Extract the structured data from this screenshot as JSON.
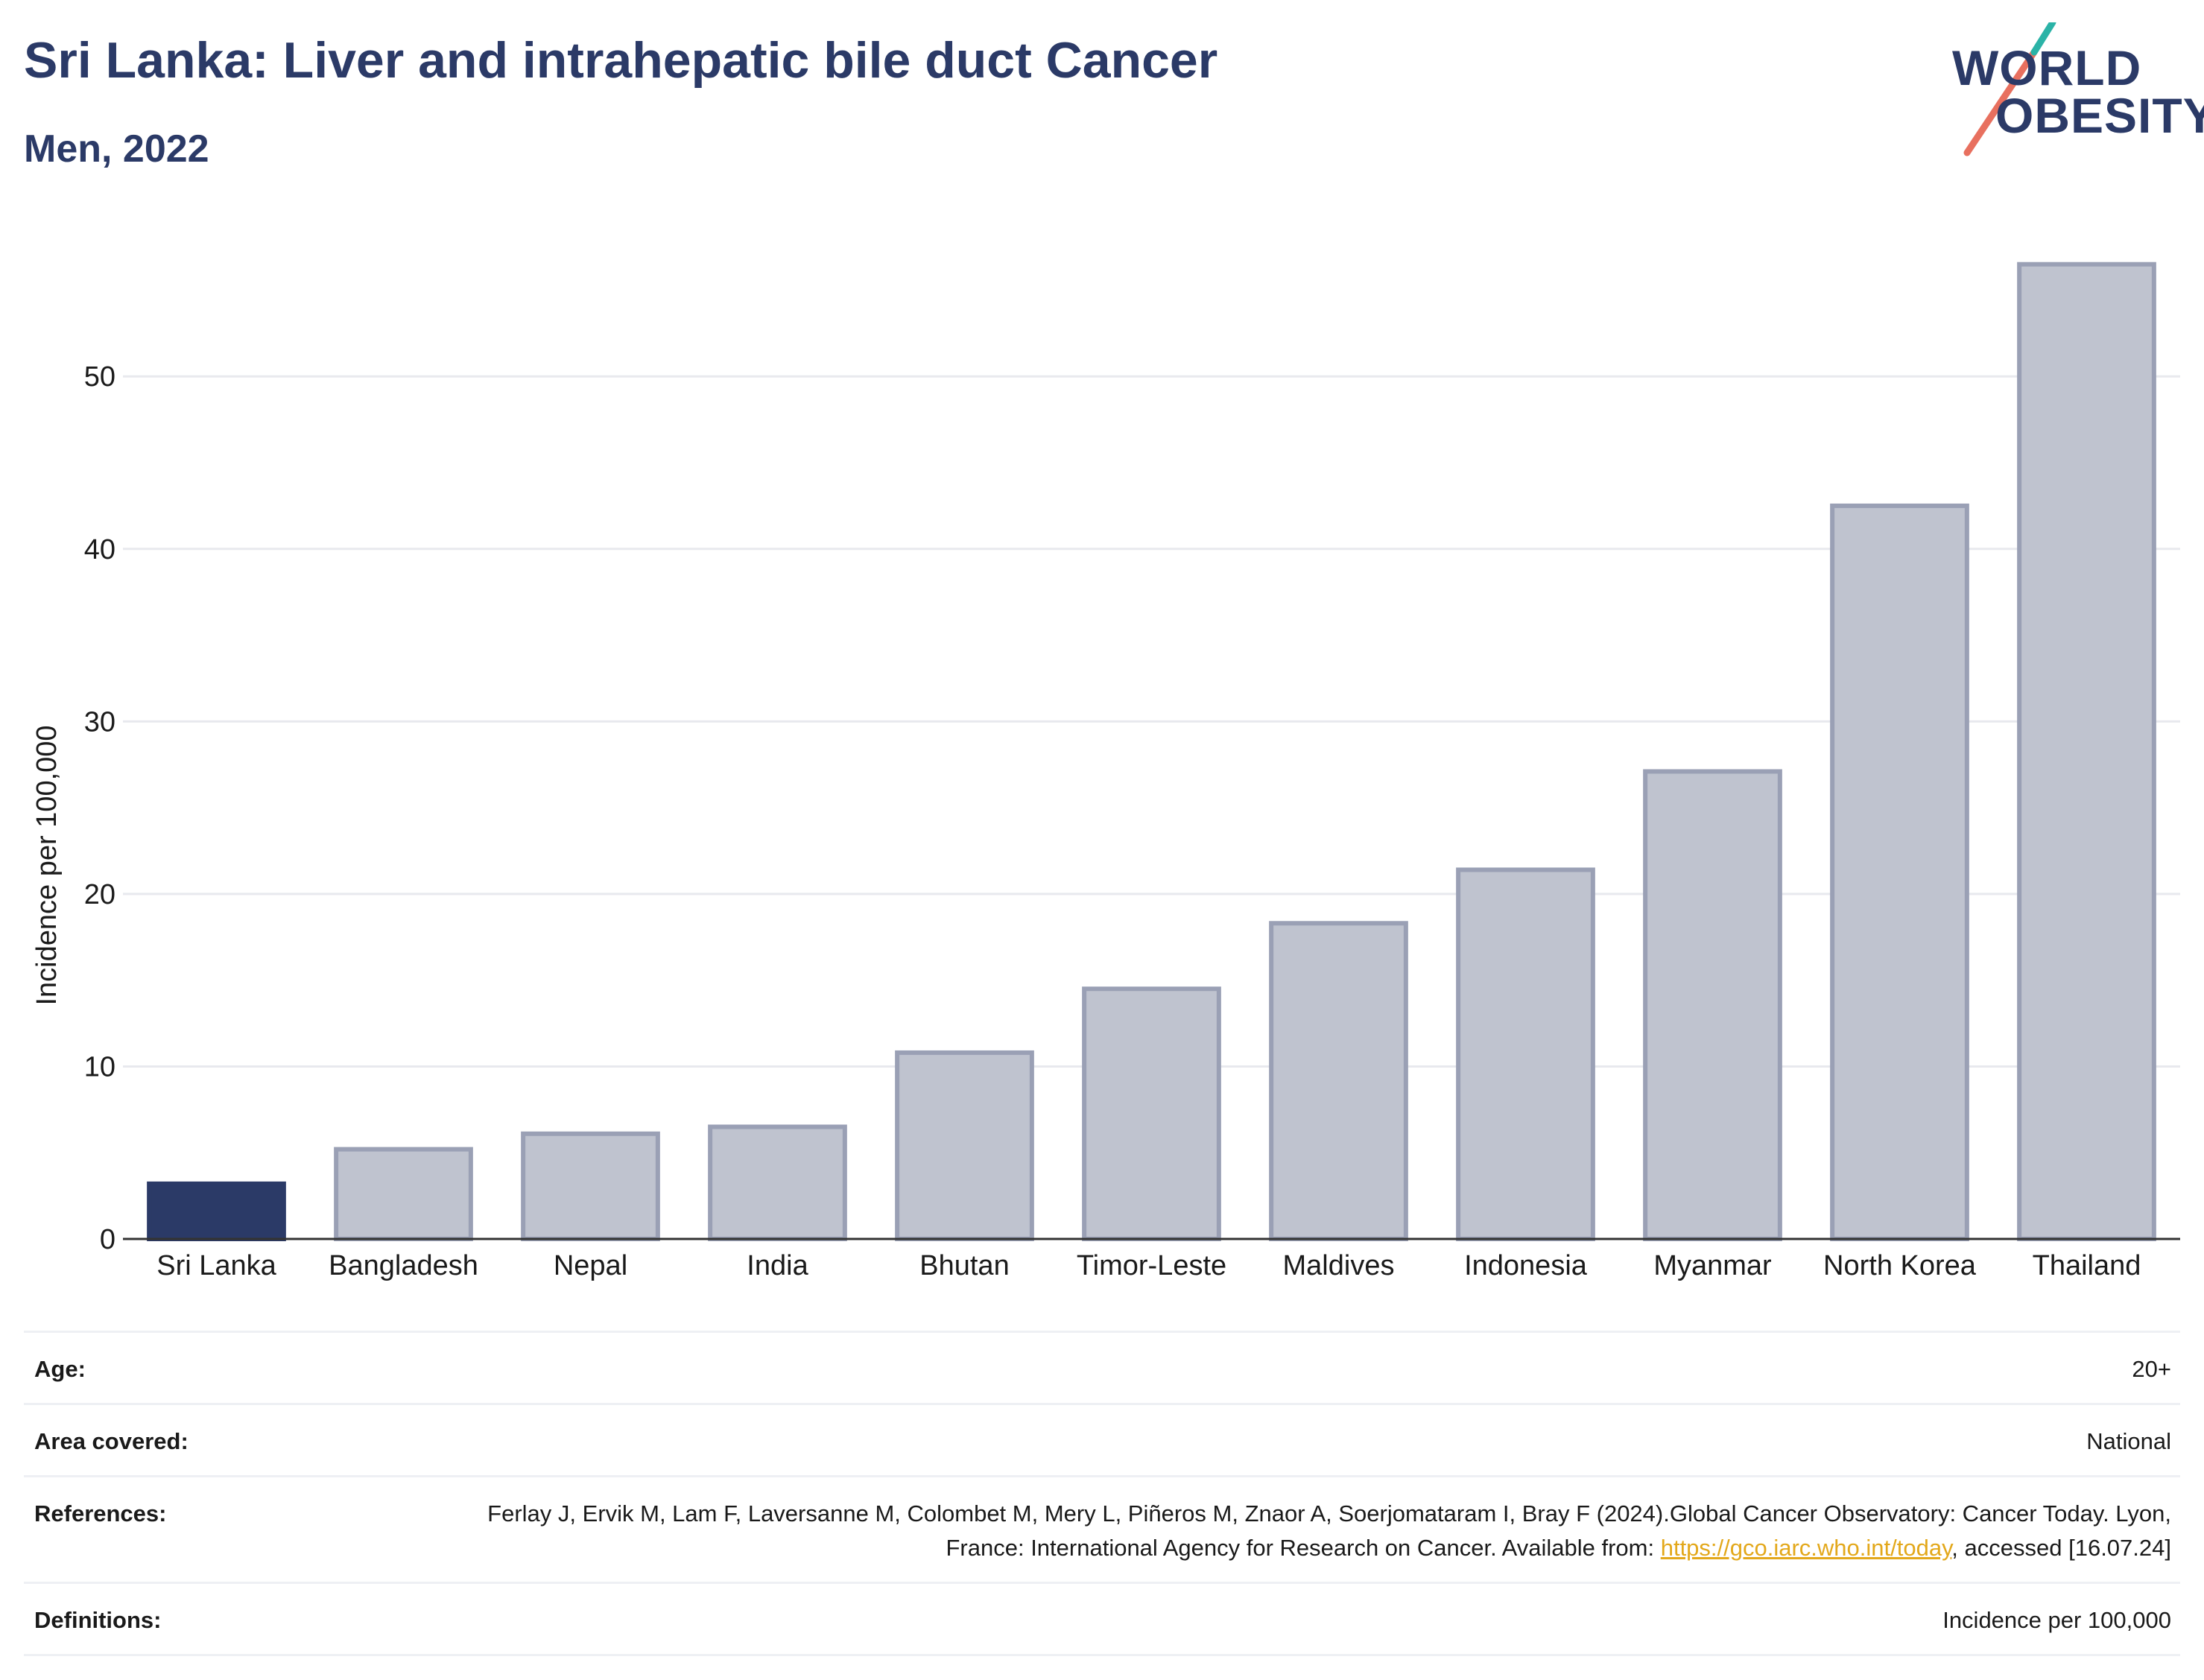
{
  "header": {
    "title": "Sri Lanka: Liver and intrahepatic bile duct Cancer",
    "subtitle": "Men, 2022"
  },
  "logo": {
    "line1": "WORLD",
    "line2": "OBESITY",
    "colors": {
      "text": "#2b3a67",
      "accent_teal": "#2bb3a7",
      "accent_coral": "#e8705f"
    }
  },
  "chart_data": {
    "type": "bar",
    "title": "Sri Lanka: Liver and intrahepatic bile duct Cancer",
    "subtitle": "Men, 2022",
    "xlabel": "",
    "ylabel": "Incidence per 100,000",
    "categories": [
      "Sri Lanka",
      "Bangladesh",
      "Nepal",
      "India",
      "Bhutan",
      "Timor-Leste",
      "Maldives",
      "Indonesia",
      "Myanmar",
      "North Korea",
      "Thailand"
    ],
    "values": [
      3.2,
      5.2,
      6.1,
      6.5,
      10.8,
      14.5,
      18.3,
      21.4,
      27.1,
      42.5,
      56.5
    ],
    "highlight": "Sri Lanka",
    "ylim": [
      0,
      58
    ],
    "yticks": [
      0,
      10,
      20,
      30,
      40,
      50
    ],
    "grid": true,
    "colors": {
      "highlight": "#2b3a67",
      "other_fill": "#bfc3cf",
      "other_stroke": "#9aa0b5",
      "grid": "#e8e9ee"
    }
  },
  "meta": {
    "age_label": "Age:",
    "age_value": "20+",
    "area_label": "Area covered:",
    "area_value": "National",
    "references_label": "References:",
    "references_text_1": "Ferlay J, Ervik M, Lam F, Laversanne M, Colombet M, Mery L, Piñeros M, Znaor A, Soerjomataram I, Bray F (2024).Global Cancer Observatory: Cancer Today. Lyon, France: International Agency for Research on Cancer. Available from: ",
    "references_link": "https://gco.iarc.who.int/today",
    "references_text_2": ", accessed [16.07.24]",
    "definitions_label": "Definitions:",
    "definitions_value": "Incidence per 100,000"
  }
}
